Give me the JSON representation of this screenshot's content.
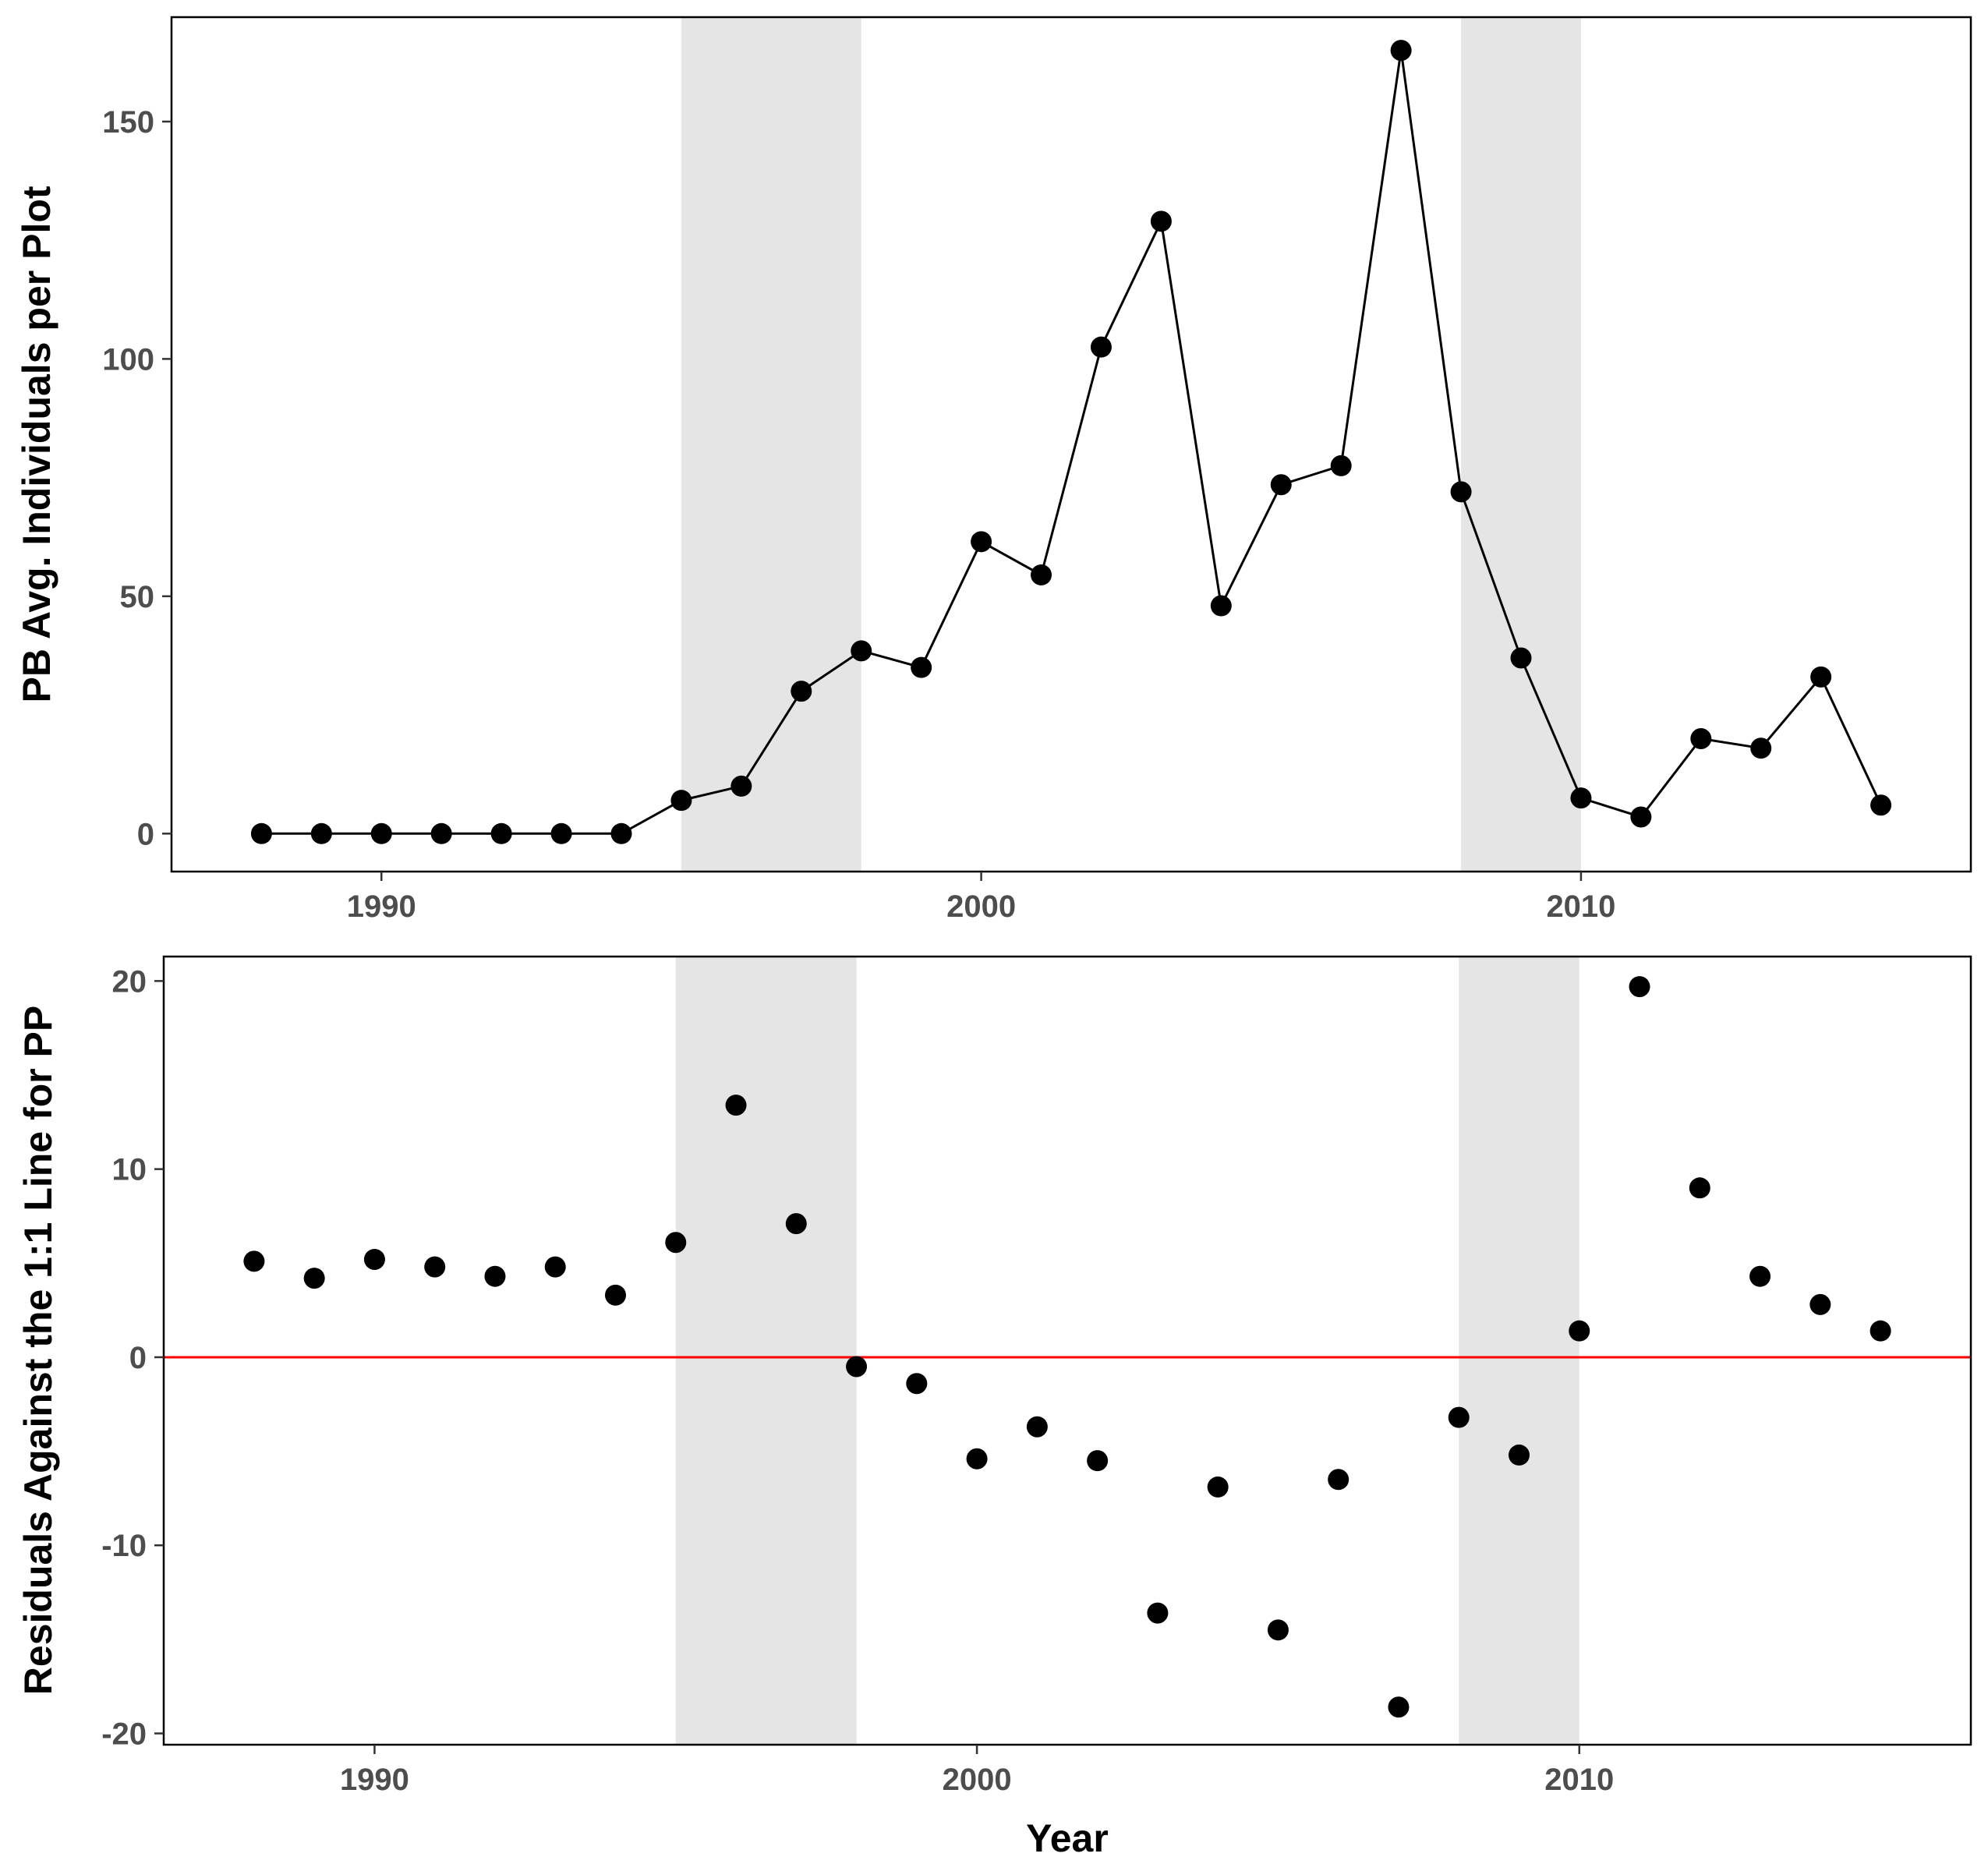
{
  "chart_data": [
    {
      "type": "line",
      "title": "",
      "xlabel": "",
      "ylabel": "PB Avg. Individuals per Plot",
      "xlim": [
        1986.5,
        2016.5
      ],
      "ylim": [
        -8,
        172
      ],
      "xticks": [
        1990,
        2000,
        2010
      ],
      "yticks": [
        0,
        50,
        100,
        150
      ],
      "grid": false,
      "shaded_periods": [
        [
          1995,
          1998
        ],
        [
          2008,
          2010
        ]
      ],
      "series": [
        {
          "x": [
            1988,
            1989,
            1990,
            1991,
            1992,
            1993,
            1994,
            1995,
            1996,
            1997,
            1998,
            1999,
            2000,
            2001,
            2002,
            2003,
            2004,
            2005,
            2006,
            2007,
            2008,
            2009,
            2010,
            2011,
            2012,
            2013,
            2014,
            2015
          ],
          "y": [
            0,
            0,
            0,
            0,
            0,
            0,
            0,
            7,
            10,
            30,
            38.5,
            35,
            61.5,
            54.5,
            102.5,
            129,
            48,
            73.5,
            77.5,
            165,
            72,
            37,
            7.5,
            3.5,
            20,
            18,
            33,
            6
          ]
        }
      ]
    },
    {
      "type": "scatter",
      "title": "",
      "xlabel": "Year",
      "ylabel": "Residuals Against the 1:1 Line for PP",
      "xlim": [
        1986.5,
        2016.5
      ],
      "ylim": [
        -20.6,
        21.3
      ],
      "xticks": [
        1990,
        2000,
        2010
      ],
      "yticks": [
        -20,
        -10,
        0,
        10,
        20
      ],
      "grid": false,
      "reference_line": {
        "y": 0,
        "color": "#ff0000"
      },
      "shaded_periods": [
        [
          1995,
          1998
        ],
        [
          2008,
          2010
        ]
      ],
      "series": [
        {
          "x": [
            1988,
            1989,
            1990,
            1991,
            1992,
            1993,
            1994,
            1995,
            1996,
            1997,
            1998,
            1999,
            2000,
            2001,
            2002,
            2003,
            2004,
            2005,
            2006,
            2007,
            2008,
            2009,
            2010,
            2011,
            2012,
            2013,
            2014,
            2015
          ],
          "y": [
            5.1,
            4.2,
            5.2,
            4.8,
            4.3,
            4.8,
            3.3,
            6.1,
            13.4,
            7.1,
            -0.5,
            -1.4,
            -5.4,
            -3.7,
            -5.5,
            -13.6,
            -6.9,
            -14.5,
            -6.5,
            -18.6,
            -3.2,
            -5.2,
            1.4,
            19.7,
            9.0,
            4.3,
            2.8,
            1.4
          ]
        }
      ]
    }
  ],
  "colors": {
    "point": "#000000",
    "line": "#000000",
    "shade": "#e5e5e5",
    "zero_line": "#ff0000",
    "tick_label": "#4d4d4d"
  }
}
